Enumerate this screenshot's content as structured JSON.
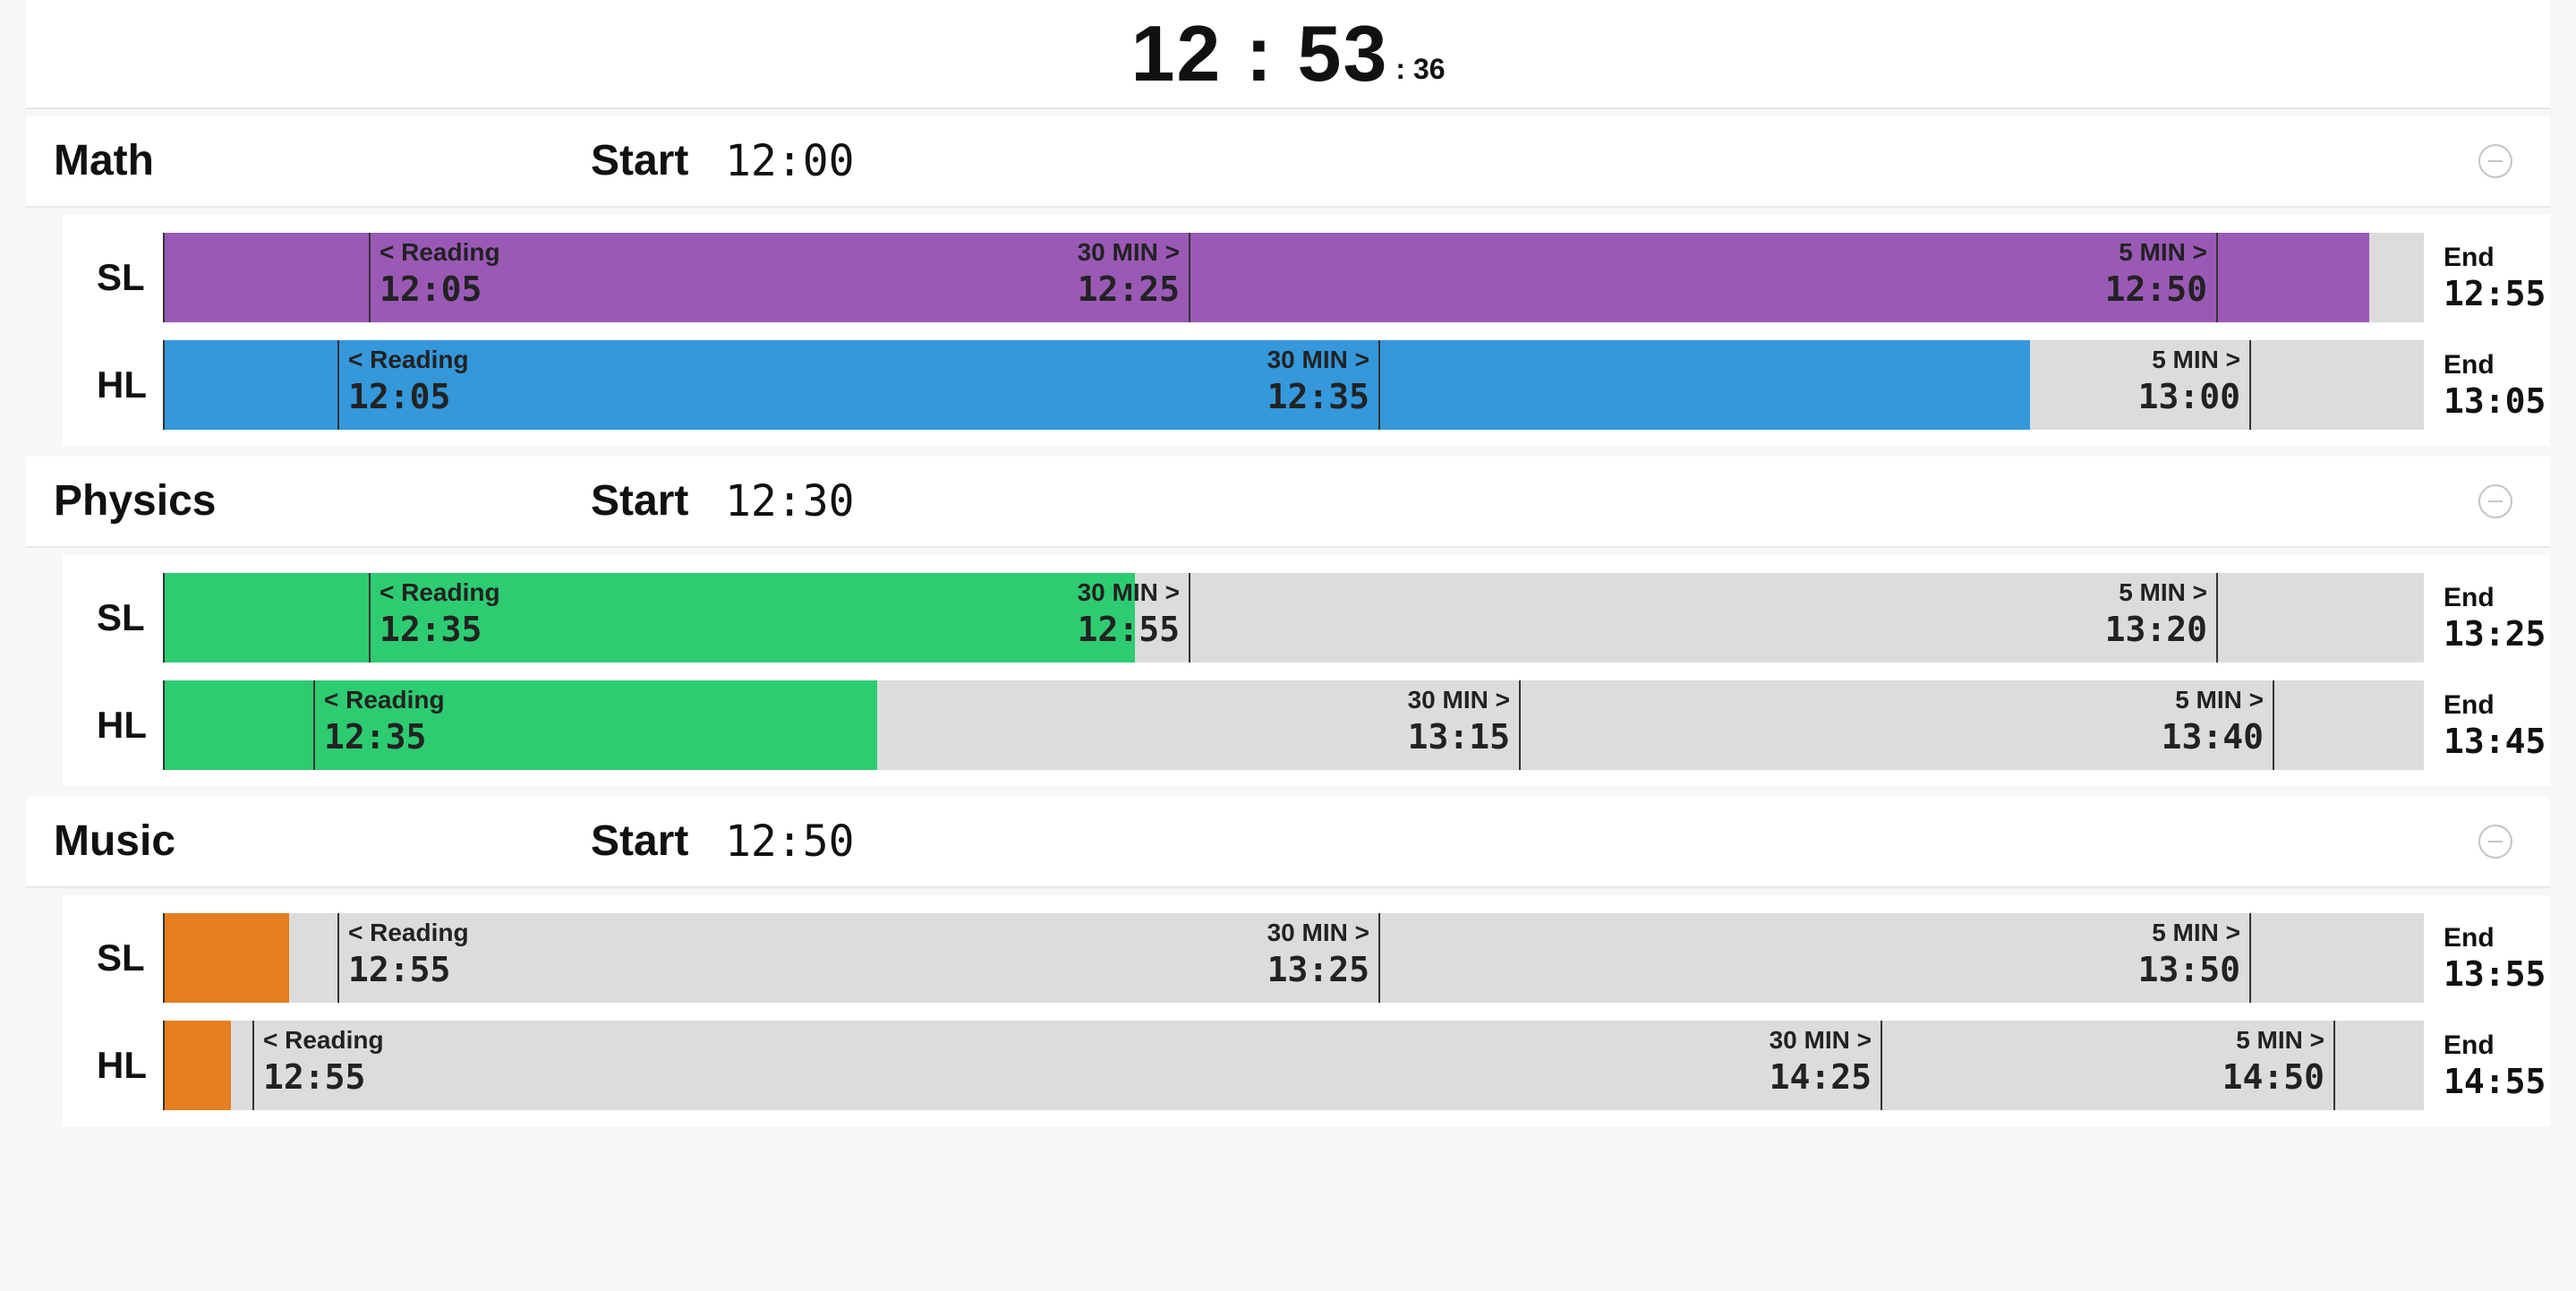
{
  "clock": {
    "hours_minutes": "12 : 53",
    "seconds": ": 36"
  },
  "colors": {
    "math": "#9b59b6",
    "math_hl": "#3498db",
    "physics": "#2ecc71",
    "music": "#e67e22",
    "track": "#dcdcdc"
  },
  "exams": [
    {
      "name": "Math",
      "start_label": "Start",
      "start_time": "12:00",
      "levels": [
        {
          "label": "SL",
          "color": "#9b59b6",
          "progress": 0.976,
          "reading_label": "< Reading",
          "reading_time": "12:05",
          "thirty_label": "30 MIN >",
          "thirty_time": "12:25",
          "five_label": "5 MIN >",
          "five_time": "12:50",
          "end_label": "End",
          "end_time": "12:55"
        },
        {
          "label": "HL",
          "color": "#3498db",
          "progress": 0.826,
          "reading_label": "< Reading",
          "reading_time": "12:05",
          "thirty_label": "30 MIN >",
          "thirty_time": "12:35",
          "five_label": "5 MIN >",
          "five_time": "13:00",
          "end_label": "End",
          "end_time": "13:05"
        }
      ]
    },
    {
      "name": "Physics",
      "start_label": "Start",
      "start_time": "12:30",
      "levels": [
        {
          "label": "SL",
          "color": "#2ecc71",
          "progress": 0.43,
          "reading_label": "< Reading",
          "reading_time": "12:35",
          "thirty_label": "30 MIN >",
          "thirty_time": "12:55",
          "five_label": "5 MIN >",
          "five_time": "13:20",
          "end_label": "End",
          "end_time": "13:25"
        },
        {
          "label": "HL",
          "color": "#2ecc71",
          "progress": 0.316,
          "reading_label": "< Reading",
          "reading_time": "12:35",
          "thirty_label": "30 MIN >",
          "thirty_time": "13:15",
          "five_label": "5 MIN >",
          "five_time": "13:40",
          "end_label": "End",
          "end_time": "13:45"
        }
      ]
    },
    {
      "name": "Music",
      "start_label": "Start",
      "start_time": "12:50",
      "levels": [
        {
          "label": "SL",
          "color": "#e67e22",
          "progress": 0.056,
          "reading_label": "< Reading",
          "reading_time": "12:55",
          "thirty_label": "30 MIN >",
          "thirty_time": "13:25",
          "five_label": "5 MIN >",
          "five_time": "13:50",
          "end_label": "End",
          "end_time": "13:55"
        },
        {
          "label": "HL",
          "color": "#e67e22",
          "progress": 0.03,
          "reading_label": "< Reading",
          "reading_time": "12:55",
          "thirty_label": "30 MIN >",
          "thirty_time": "14:25",
          "five_label": "5 MIN >",
          "five_time": "14:50",
          "end_label": "End",
          "end_time": "14:55"
        }
      ]
    }
  ]
}
